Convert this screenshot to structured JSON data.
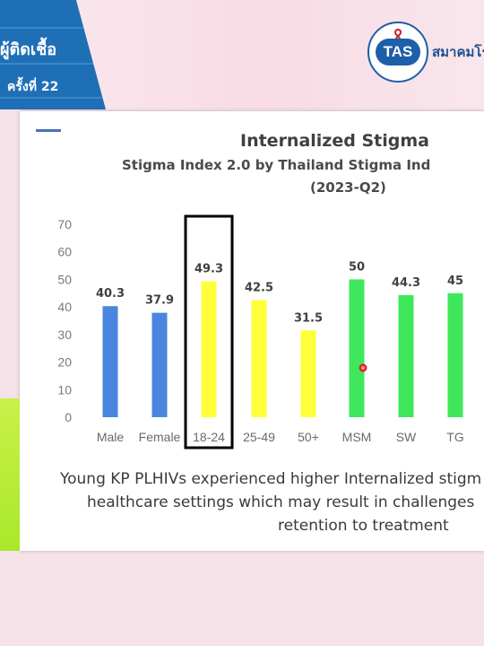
{
  "header": {
    "banner_title": "ผู้ติดเชื้อ",
    "banner_subtitle": "ครั้งที่ 22",
    "logo_text": "TAS",
    "logo_ring_text": "THAI AIDS SOCIETY",
    "org_name": "สมาคมโร"
  },
  "colors": {
    "male_female": "#4a86e0",
    "age_groups": "#ffff3a",
    "key_populations": "#3ee85a",
    "highlight_box": "#000000",
    "header_banner": "#1f6fb6"
  },
  "chart_data": {
    "type": "bar",
    "title": "Internalized Stigma",
    "subtitle": "Stigma Index 2.0 by Thailand  Stigma Ind",
    "period": "(2023-Q2)",
    "categories": [
      "Male",
      "Female",
      "18-24",
      "25-49",
      "50+",
      "MSM",
      "SW",
      "TG"
    ],
    "values": [
      40.3,
      37.9,
      49.3,
      42.5,
      31.5,
      50,
      44.3,
      45
    ],
    "data_labels": [
      "40.3",
      "37.9",
      "49.3",
      "42.5",
      "31.5",
      "50",
      "44.3",
      "45"
    ],
    "bar_groups": [
      "male_female",
      "male_female",
      "age_groups",
      "age_groups",
      "age_groups",
      "key_populations",
      "key_populations",
      "key_populations"
    ],
    "highlighted_category": "18-24",
    "y_ticks": [
      "0",
      "10",
      "20",
      "30",
      "40",
      "50",
      "60",
      "70"
    ],
    "ylim": [
      0,
      70
    ],
    "grid": false,
    "legend": "none"
  },
  "caption": {
    "line1": "Young KP PLHIVs experienced higher Internalized stigm",
    "line2": "healthcare settings which may result in challenges",
    "line3": "retention to treatment"
  }
}
